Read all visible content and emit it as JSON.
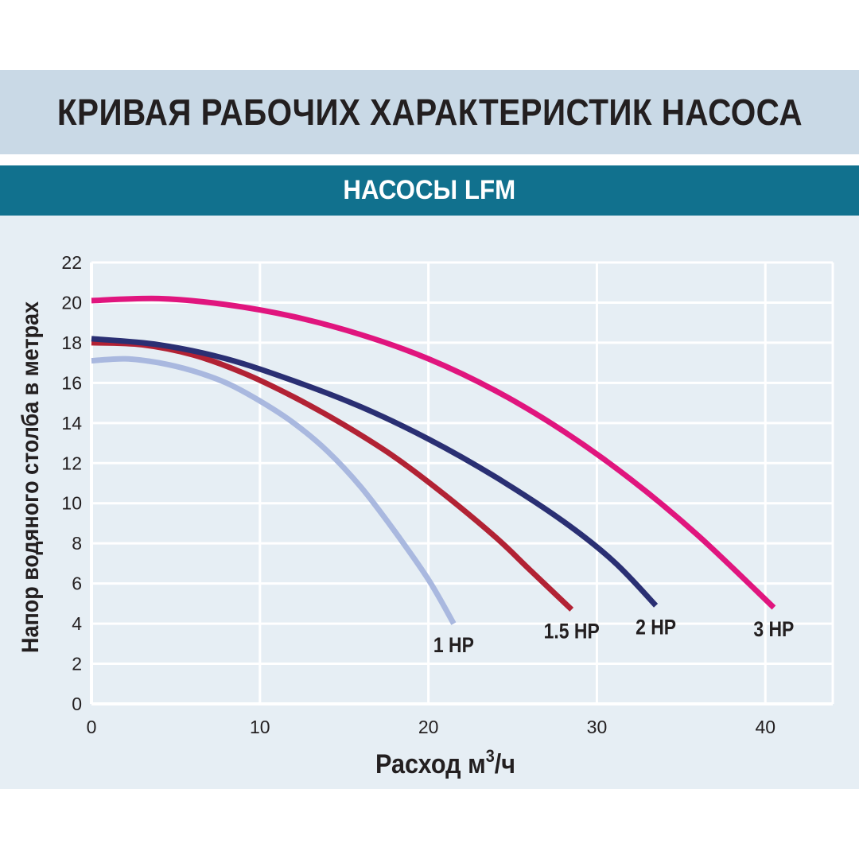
{
  "header": {
    "title": "КРИВАЯ РАБОЧИХ ХАРАКТЕРИСТИК НАСОСА",
    "subtitle": "НАСОСЫ LFM"
  },
  "colors": {
    "title_band": "#c9d9e6",
    "subtitle_band": "#11718e",
    "plot_background": "#e6eef4"
  },
  "chart_data": {
    "type": "line",
    "xlabel_main": "Расход м",
    "xlabel_sup": "3",
    "xlabel_tail": "/ч",
    "ylabel": "Напор водяного столба в метрах",
    "xlim": [
      0,
      44
    ],
    "ylim": [
      0,
      22
    ],
    "x_ticks": [
      "0",
      "10",
      "20",
      "30",
      "40"
    ],
    "y_ticks": [
      "0",
      "2",
      "4",
      "6",
      "8",
      "10",
      "12",
      "14",
      "16",
      "18",
      "20",
      "22"
    ],
    "grid": true,
    "series": [
      {
        "name": "1 HP",
        "color": "#a9b8df",
        "points": [
          [
            0,
            17.1
          ],
          [
            2,
            17.2
          ],
          [
            4,
            17.0
          ],
          [
            6,
            16.6
          ],
          [
            8,
            16.0
          ],
          [
            10,
            15.1
          ],
          [
            12,
            14.0
          ],
          [
            14,
            12.6
          ],
          [
            16,
            10.8
          ],
          [
            18,
            8.6
          ],
          [
            20,
            6.2
          ],
          [
            21.5,
            4.0
          ]
        ]
      },
      {
        "name": "1.5 HP",
        "color": "#b22234",
        "points": [
          [
            0,
            18.0
          ],
          [
            3,
            17.9
          ],
          [
            6,
            17.4
          ],
          [
            9,
            16.5
          ],
          [
            12,
            15.3
          ],
          [
            15,
            13.9
          ],
          [
            18,
            12.3
          ],
          [
            21,
            10.4
          ],
          [
            24,
            8.3
          ],
          [
            26,
            6.7
          ],
          [
            28.5,
            4.7
          ]
        ]
      },
      {
        "name": "2 HP",
        "color": "#2a2f73",
        "points": [
          [
            0,
            18.2
          ],
          [
            4,
            17.9
          ],
          [
            8,
            17.2
          ],
          [
            12,
            16.1
          ],
          [
            16,
            14.8
          ],
          [
            20,
            13.2
          ],
          [
            24,
            11.3
          ],
          [
            28,
            9.1
          ],
          [
            31,
            7.1
          ],
          [
            33.5,
            4.9
          ]
        ]
      },
      {
        "name": "3 HP",
        "color": "#e0157e",
        "points": [
          [
            0,
            20.1
          ],
          [
            4,
            20.2
          ],
          [
            8,
            19.9
          ],
          [
            12,
            19.3
          ],
          [
            16,
            18.4
          ],
          [
            20,
            17.2
          ],
          [
            24,
            15.6
          ],
          [
            28,
            13.6
          ],
          [
            32,
            11.2
          ],
          [
            36,
            8.4
          ],
          [
            40.5,
            4.8
          ]
        ]
      }
    ]
  }
}
